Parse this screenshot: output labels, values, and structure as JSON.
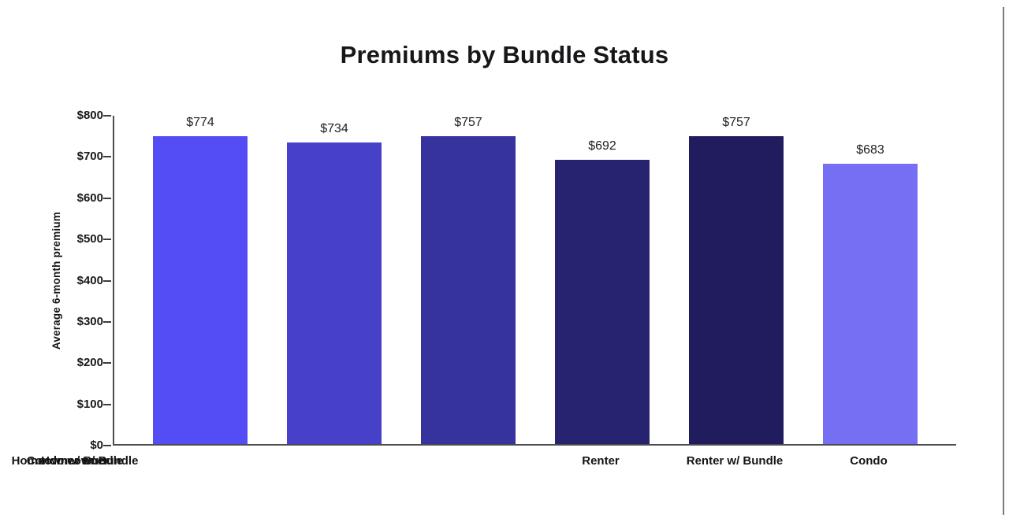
{
  "chart_data": {
    "type": "bar",
    "title": "Premiums by Bundle Status",
    "categories": [
      "Renter",
      "Renter w/ Bundle",
      "Condo",
      "Condo w/ Bundle",
      "Homeowner",
      "Homeowner w/ Bundle"
    ],
    "values": [
      774,
      734,
      757,
      692,
      757,
      683
    ],
    "value_labels": [
      "$774",
      "$734",
      "$757",
      "$692",
      "$757",
      "$683"
    ],
    "xlabel": "",
    "ylabel": "Average 6-month premium",
    "ylim": [
      0,
      800
    ],
    "ytick_values": [
      0,
      100,
      200,
      300,
      400,
      500,
      600,
      700,
      800
    ],
    "ytick_labels": [
      "$0",
      "$100",
      "$200",
      "$300",
      "$400",
      "$500",
      "$600",
      "$700",
      "$800"
    ],
    "grid": false,
    "legend": false,
    "bar_colors": [
      "#544DF5",
      "#4740C9",
      "#37339E",
      "#282371",
      "#211C5E",
      "#766FF3"
    ],
    "axis_color": "#4C4C4E",
    "text_color": "#1A1A1A"
  }
}
